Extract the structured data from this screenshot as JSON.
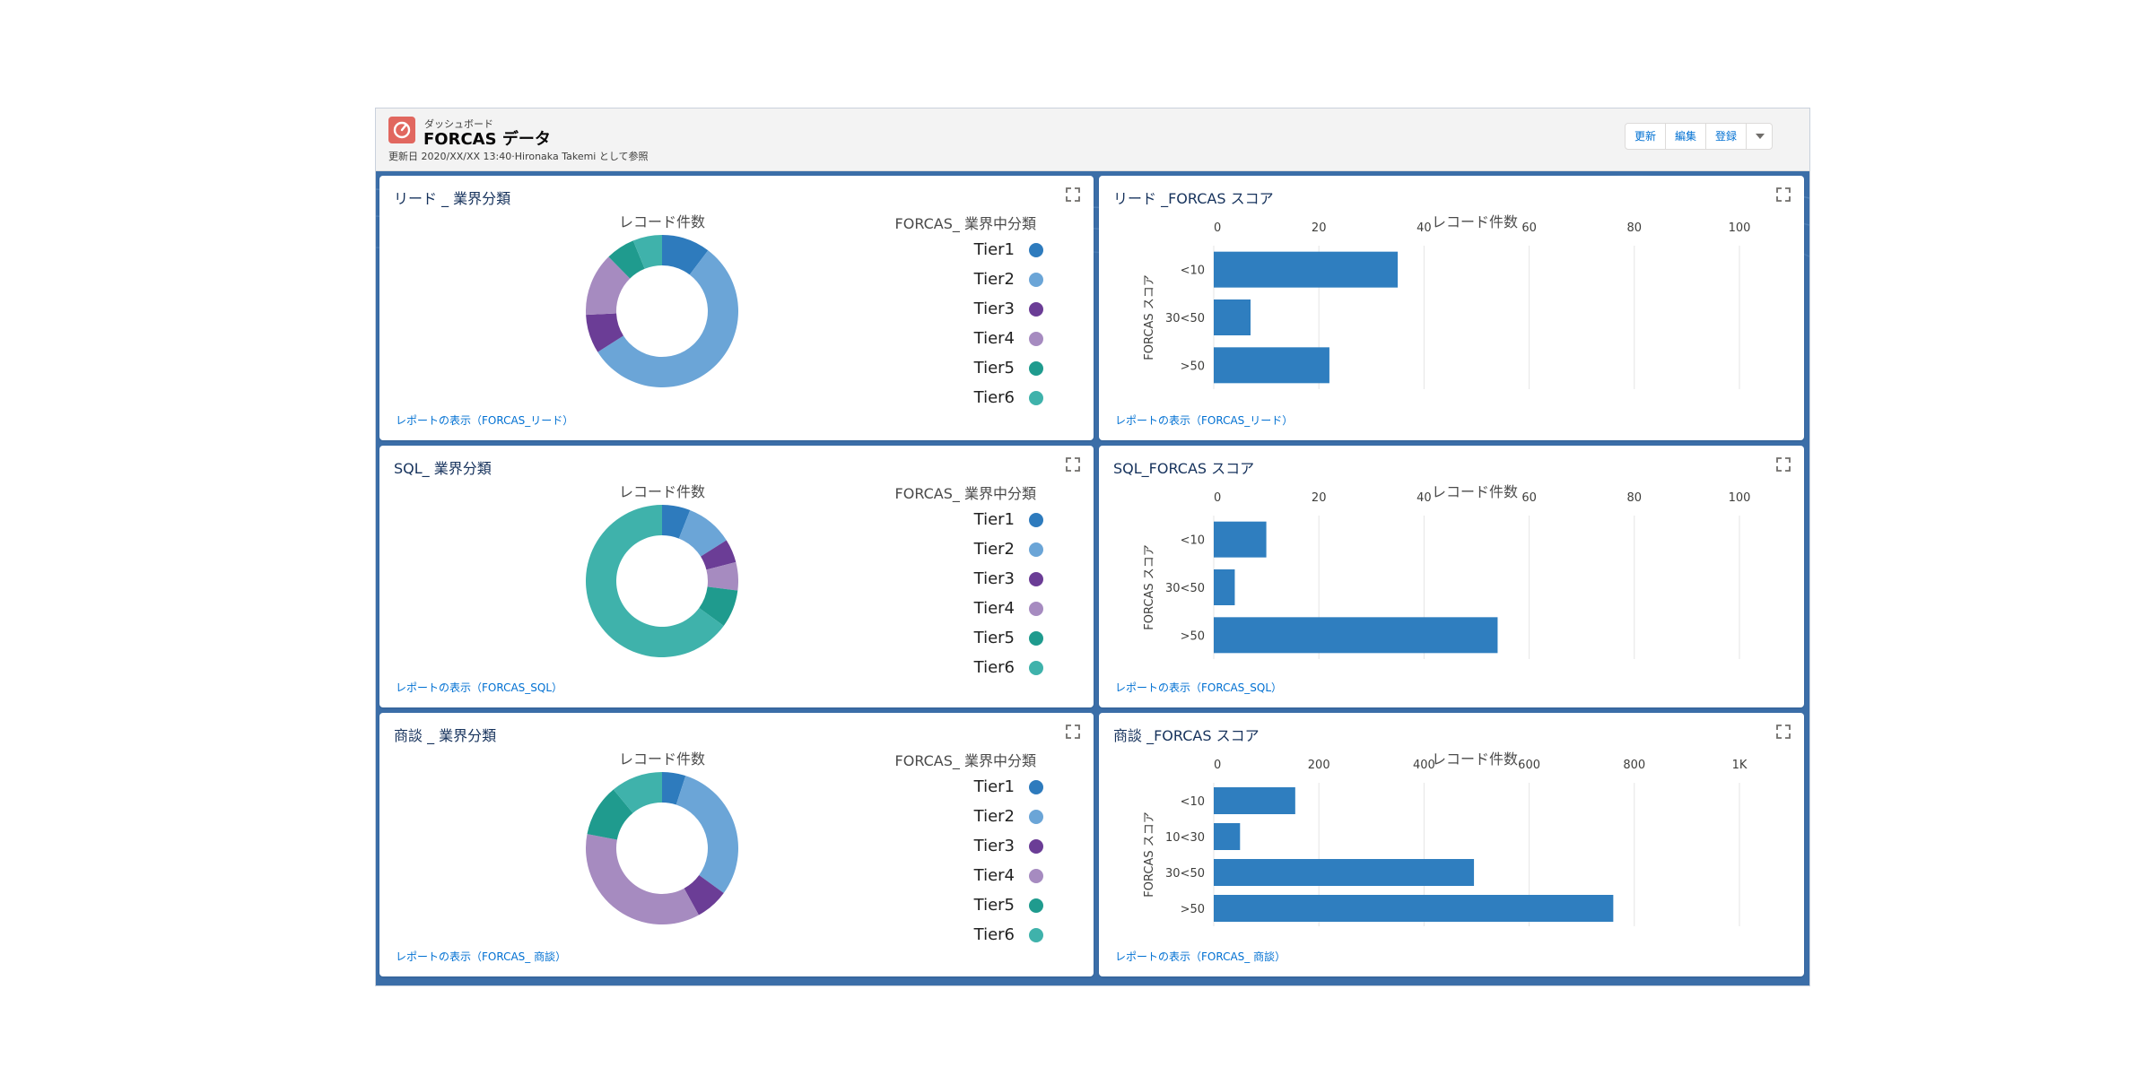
{
  "header": {
    "kicker": "ダッシュボード",
    "title": "FORCAS データ",
    "meta": "更新日 2020/XX/XX 13:40·Hironaka Takemi として参照",
    "actions": [
      "更新",
      "編集",
      "登録"
    ]
  },
  "colors": {
    "Tier1": "#2e7bbd",
    "Tier2": "#6ba5d7",
    "Tier3": "#6b3d96",
    "Tier4": "#a68bc0",
    "Tier5": "#1f9b8e",
    "Tier6": "#3fb2ab",
    "bar": "#2f7ebf",
    "link": "#0070d2"
  },
  "cards": {
    "lead_industry": {
      "title": "リード _ 業界分類",
      "chart_label": "レコード件数",
      "legend_title": "FORCAS_ 業界中分類",
      "link": "レポートの表示（FORCAS_リード）"
    },
    "lead_score": {
      "title": "リード _FORCAS スコア",
      "chart_label": "レコード件数",
      "link": "レポートの表示（FORCAS_リード）"
    },
    "sql_industry": {
      "title": "SQL_ 業界分類",
      "chart_label": "レコード件数",
      "legend_title": "FORCAS_ 業界中分類",
      "link": "レポートの表示（FORCAS_SQL）"
    },
    "sql_score": {
      "title": "SQL_FORCAS スコア",
      "chart_label": "レコード件数",
      "link": "レポートの表示（FORCAS_SQL）"
    },
    "deal_industry": {
      "title": "商談 _ 業界分類",
      "chart_label": "レコード件数",
      "legend_title": "FORCAS_ 業界中分類",
      "link": "レポートの表示（FORCAS_ 商談）"
    },
    "deal_score": {
      "title": "商談 _FORCAS スコア",
      "chart_label": "レコード件数",
      "link": "レポートの表示（FORCAS_ 商談）"
    }
  },
  "chart_data": [
    {
      "id": "lead_industry",
      "type": "pie",
      "donut": true,
      "title": "レコード件数",
      "legend_title": "FORCAS_ 業界中分類",
      "categories": [
        "Tier1",
        "Tier2",
        "Tier3",
        "Tier4",
        "Tier5",
        "Tier6"
      ],
      "values": [
        10,
        54,
        8,
        13,
        6,
        6
      ]
    },
    {
      "id": "lead_score",
      "type": "bar",
      "orientation": "horizontal",
      "title": "レコード件数",
      "ylabel": "FORCAS スコア",
      "categories": [
        "<10",
        "30<50",
        ">50"
      ],
      "values": [
        35,
        7,
        22
      ],
      "xlim": [
        0,
        100
      ],
      "xticks": [
        "0",
        "20",
        "40",
        "60",
        "80",
        "100"
      ],
      "grid": true
    },
    {
      "id": "sql_industry",
      "type": "pie",
      "donut": true,
      "title": "レコード件数",
      "legend_title": "FORCAS_ 業界中分類",
      "categories": [
        "Tier1",
        "Tier2",
        "Tier3",
        "Tier4",
        "Tier5",
        "Tier6"
      ],
      "values": [
        6,
        10,
        5,
        6,
        8,
        65
      ]
    },
    {
      "id": "sql_score",
      "type": "bar",
      "orientation": "horizontal",
      "title": "レコード件数",
      "ylabel": "FORCAS スコア",
      "categories": [
        "<10",
        "30<50",
        ">50"
      ],
      "values": [
        10,
        4,
        54
      ],
      "xlim": [
        0,
        100
      ],
      "xticks": [
        "0",
        "20",
        "40",
        "60",
        "80",
        "100"
      ],
      "grid": true
    },
    {
      "id": "deal_industry",
      "type": "pie",
      "donut": true,
      "title": "レコード件数",
      "legend_title": "FORCAS_ 業界中分類",
      "categories": [
        "Tier1",
        "Tier2",
        "Tier3",
        "Tier4",
        "Tier5",
        "Tier6"
      ],
      "values": [
        5,
        30,
        7,
        36,
        11,
        11
      ]
    },
    {
      "id": "deal_score",
      "type": "bar",
      "orientation": "horizontal",
      "title": "レコード件数",
      "ylabel": "FORCAS スコア",
      "categories": [
        "<10",
        "10<30",
        "30<50",
        ">50"
      ],
      "values": [
        155,
        50,
        495,
        760
      ],
      "xlim": [
        0,
        1000
      ],
      "xticks": [
        "0",
        "200",
        "400",
        "600",
        "800",
        "1K"
      ],
      "grid": true
    }
  ]
}
